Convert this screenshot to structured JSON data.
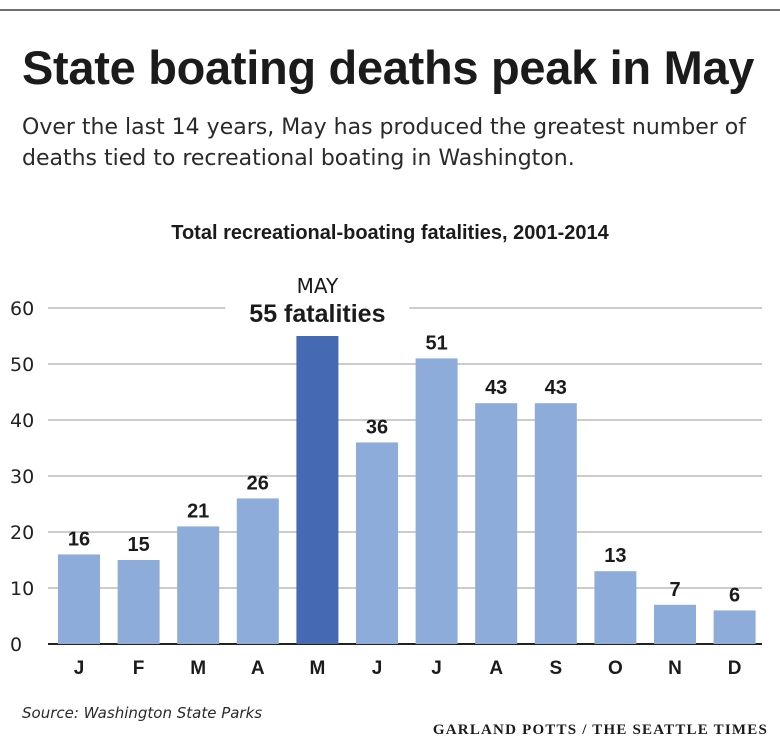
{
  "header": {
    "title": "State boating deaths peak in May",
    "subtitle": "Over the last 14 years, May has produced the greatest number of deaths tied to recreational boating in Washington."
  },
  "chart_data": {
    "type": "bar",
    "title": "Total recreational-boating fatalities, 2001-2014",
    "categories": [
      "J",
      "F",
      "M",
      "A",
      "M",
      "J",
      "J",
      "A",
      "S",
      "O",
      "N",
      "D"
    ],
    "values": [
      16,
      15,
      21,
      26,
      55,
      36,
      51,
      43,
      43,
      13,
      7,
      6
    ],
    "yticks": [
      0,
      10,
      20,
      30,
      40,
      50,
      60
    ],
    "ylim": [
      0,
      60
    ],
    "grid": true,
    "highlight_index": 4,
    "annotation": {
      "line1": "MAY",
      "line2": "55 fatalities"
    },
    "colors": {
      "bar": "#8eacda",
      "highlight": "#4569b2",
      "grid": "#9a9a9a",
      "axis": "#222222"
    }
  },
  "footer": {
    "source": "Source: Washington State Parks",
    "credit": "GARLAND POTTS / THE SEATTLE TIMES"
  }
}
